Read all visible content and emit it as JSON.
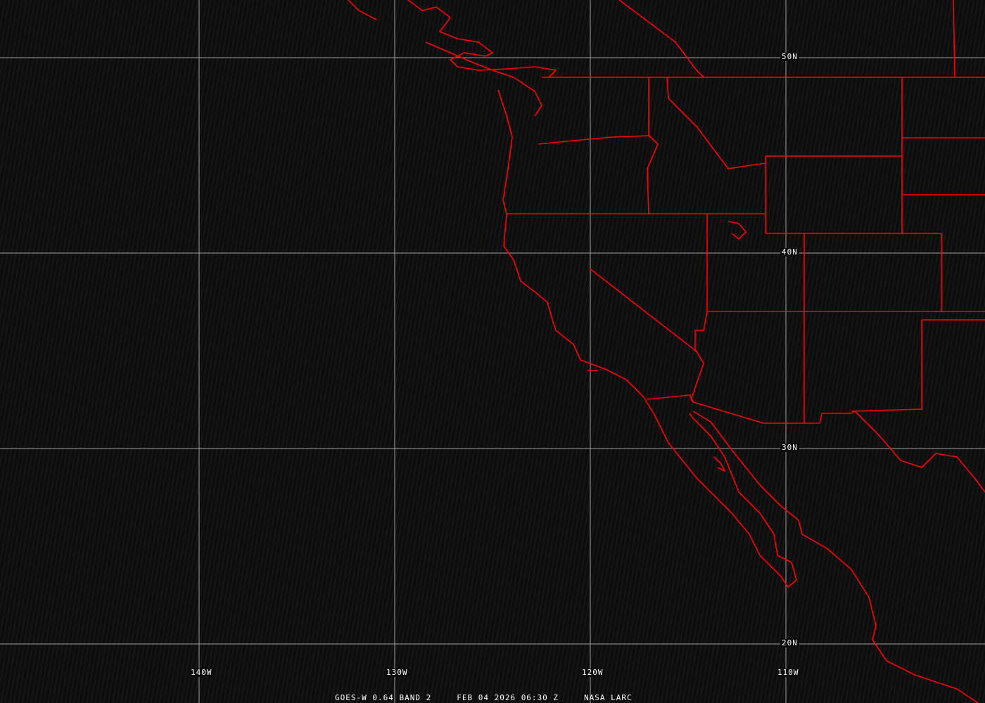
{
  "map": {
    "projection": "equirectangular",
    "grid_latitudes": [
      {
        "value": 50,
        "label": "50N"
      },
      {
        "value": 40,
        "label": "40N"
      },
      {
        "value": 30,
        "label": "30N"
      },
      {
        "value": 20,
        "label": "20N"
      }
    ],
    "grid_longitudes": [
      {
        "value": -140,
        "label": "140W"
      },
      {
        "value": -130,
        "label": "130W"
      },
      {
        "value": -120,
        "label": "120W"
      },
      {
        "value": -110,
        "label": "110W"
      }
    ],
    "colors": {
      "background": "#0d0d0d",
      "grid": "#a0a0a0",
      "borders": "#ff0000",
      "labels": "#ffffff"
    }
  },
  "caption": {
    "satellite": "GOES-W 0.64 BAND 2",
    "datetime": "FEB 04 2026 06:30 Z",
    "source": "NASA LARC"
  }
}
